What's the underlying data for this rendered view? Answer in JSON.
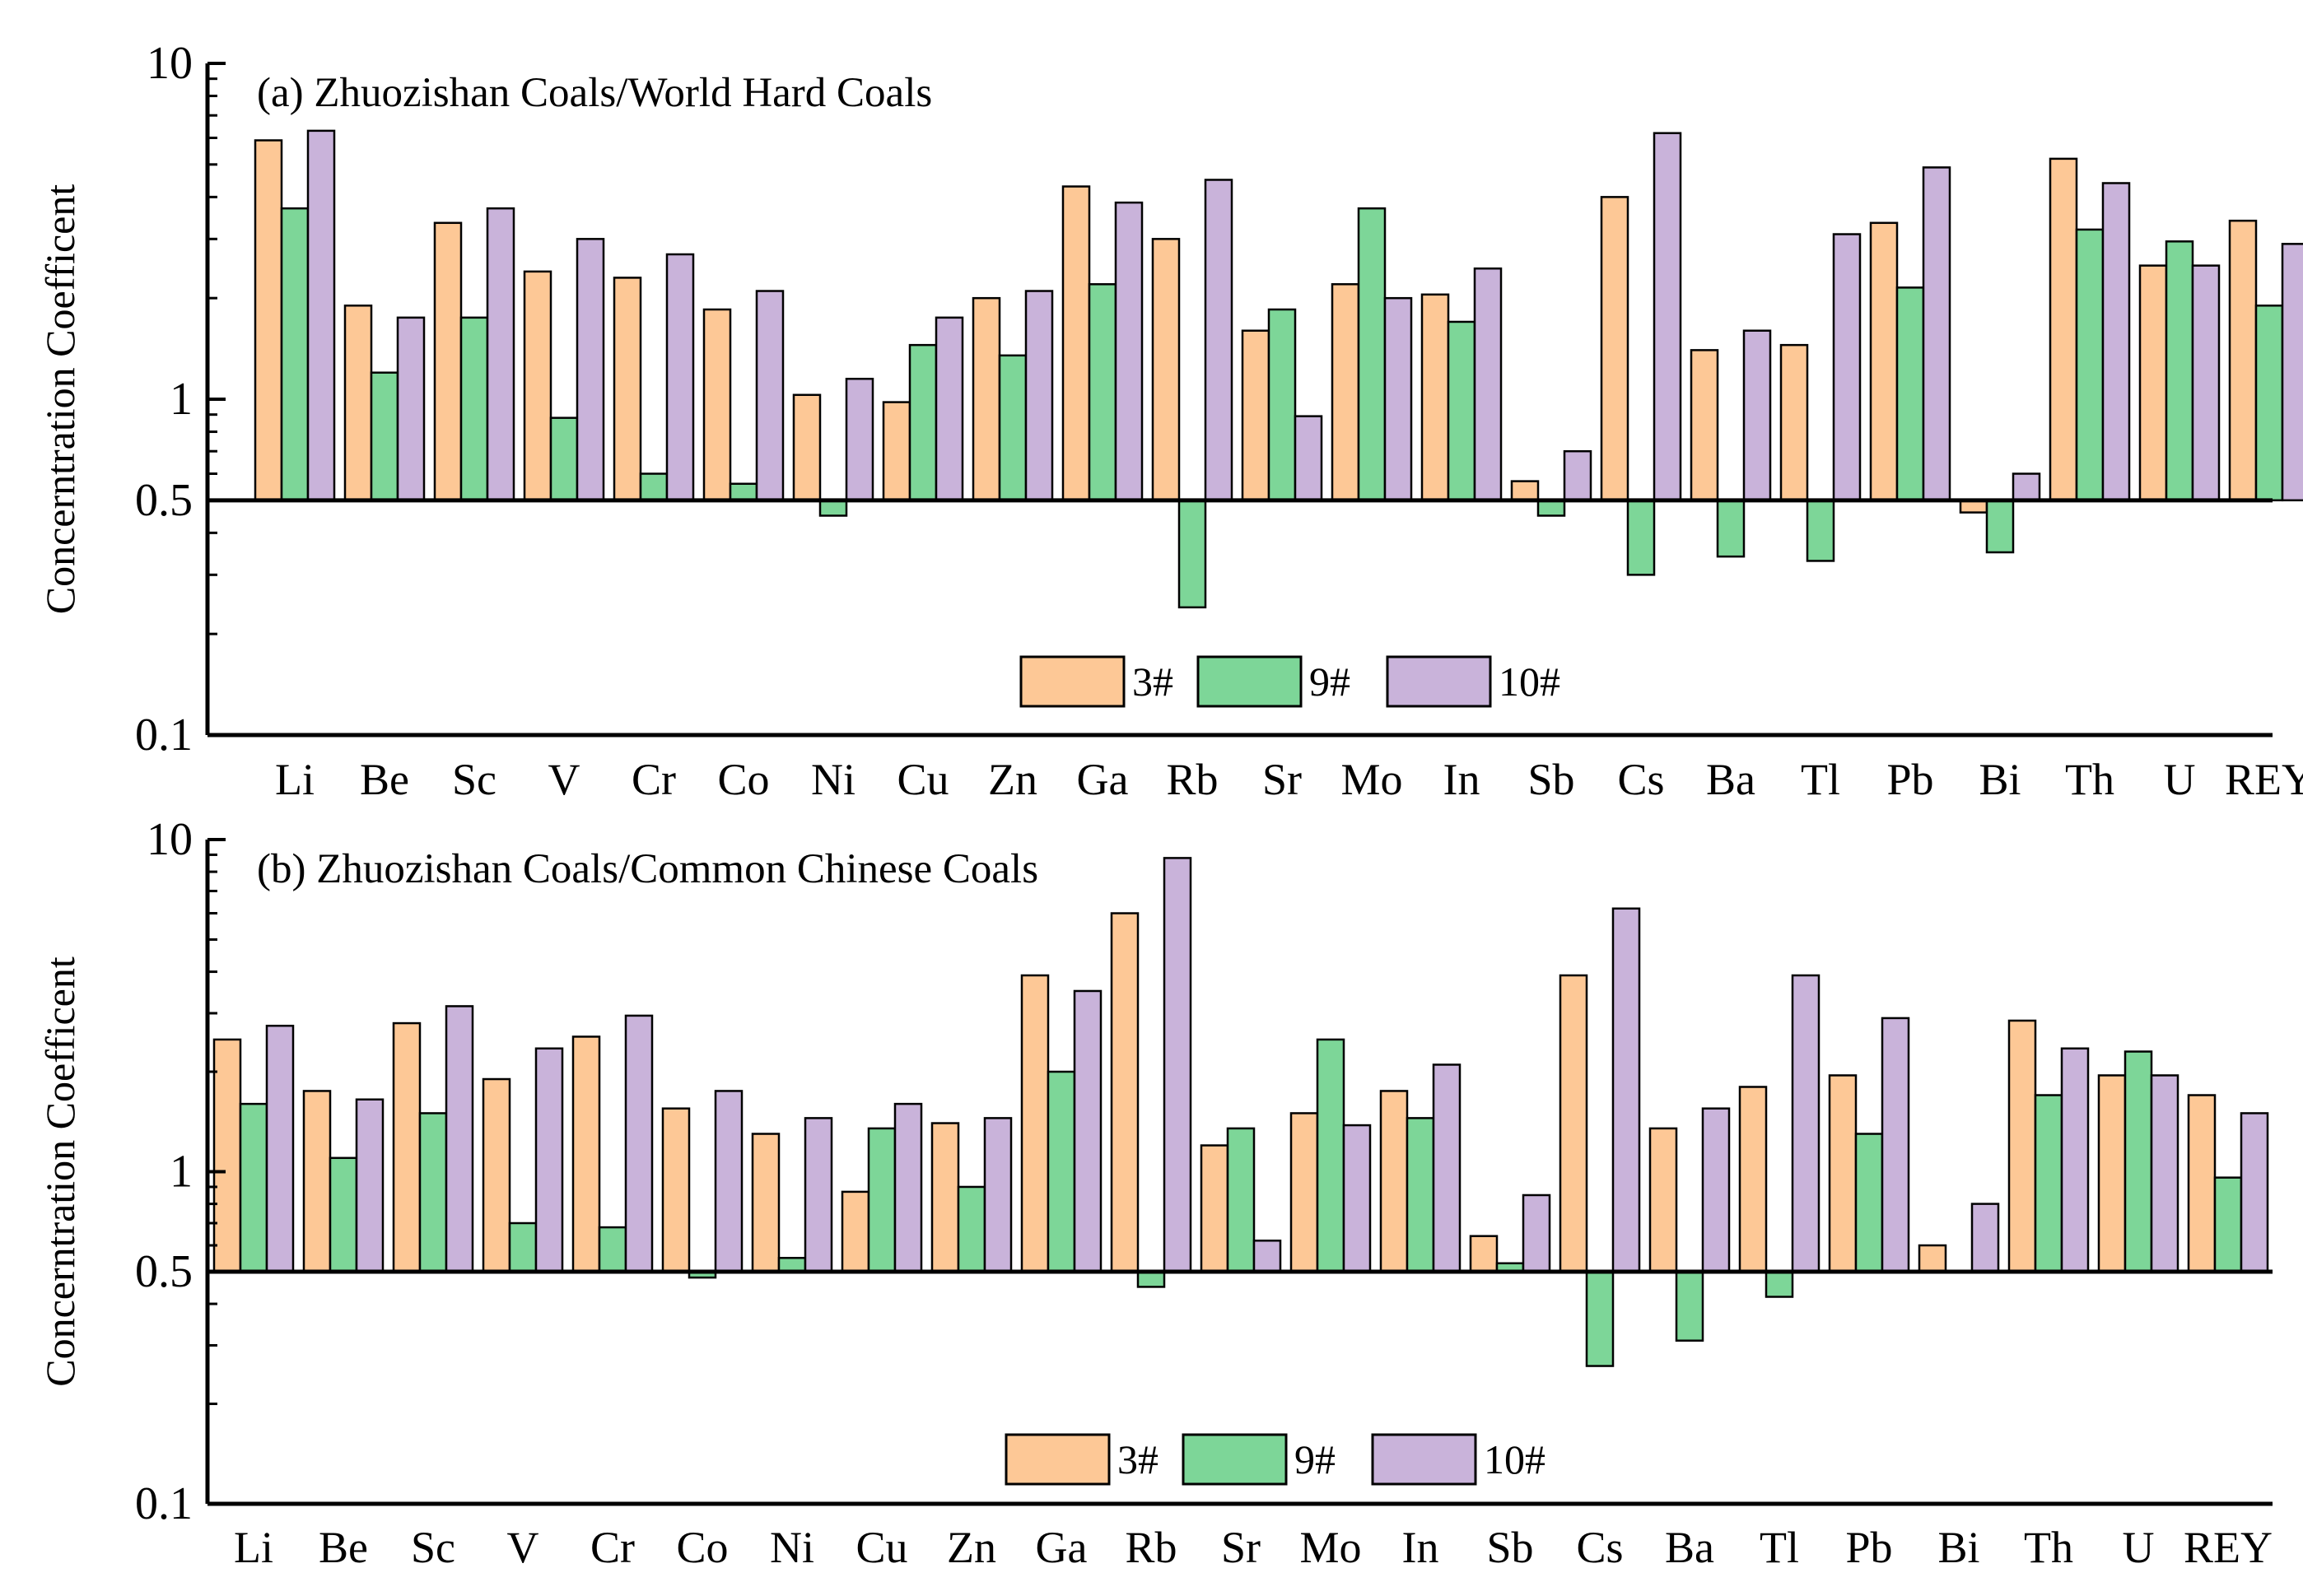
{
  "chart_data": [
    {
      "type": "bar",
      "title": "(a) Zhuozishan Coals/World Hard Coals",
      "ylabel": "Concerntration Coefficent",
      "xlabel": "",
      "yscale": "log",
      "ylim": [
        0.1,
        10
      ],
      "baseline": 0.5,
      "yticks": [
        "0.1",
        "0.5",
        "1",
        "10"
      ],
      "legend_position": "bottom-center",
      "categories": [
        "Li",
        "Be",
        "Sc",
        "V",
        "Cr",
        "Co",
        "Ni",
        "Cu",
        "Zn",
        "Ga",
        "Rb",
        "Sr",
        "Mo",
        "In",
        "Sb",
        "Cs",
        "Ba",
        "Tl",
        "Pb",
        "Bi",
        "Th",
        "U",
        "REY"
      ],
      "series": [
        {
          "name": "3#",
          "color": "#FDC896",
          "values": [
            5.9,
            1.9,
            3.35,
            2.4,
            2.3,
            1.85,
            1.03,
            0.98,
            2.0,
            4.3,
            3.0,
            1.6,
            2.2,
            2.05,
            0.57,
            4.0,
            1.4,
            1.45,
            3.35,
            0.46,
            5.2,
            2.5,
            3.4
          ]
        },
        {
          "name": "9#",
          "color": "#7DD698",
          "values": [
            3.7,
            1.2,
            1.75,
            0.88,
            0.6,
            0.56,
            0.45,
            1.45,
            1.35,
            2.2,
            0.24,
            1.85,
            3.7,
            1.7,
            0.45,
            0.3,
            0.34,
            0.33,
            2.15,
            0.35,
            3.2,
            2.95,
            1.9
          ]
        },
        {
          "name": "10#",
          "color": "#C9B3DA",
          "values": [
            6.3,
            1.75,
            3.7,
            3.0,
            2.7,
            2.1,
            1.15,
            1.75,
            2.1,
            3.85,
            4.5,
            0.89,
            2.0,
            2.45,
            0.7,
            6.2,
            1.6,
            3.1,
            4.9,
            0.6,
            4.4,
            2.5,
            2.9
          ]
        }
      ]
    },
    {
      "type": "bar",
      "title": "(b) Zhuozishan Coals/Common Chinese Coals",
      "ylabel": "Concerntration Coefficent",
      "xlabel": "",
      "yscale": "log",
      "ylim": [
        0.1,
        10
      ],
      "baseline": 0.5,
      "yticks": [
        "0.1",
        "0.5",
        "1",
        "10"
      ],
      "legend_position": "bottom-center",
      "categories": [
        "Li",
        "Be",
        "Sc",
        "V",
        "Cr",
        "Co",
        "Ni",
        "Cu",
        "Zn",
        "Ga",
        "Rb",
        "Sr",
        "Mo",
        "In",
        "Sb",
        "Cs",
        "Ba",
        "Tl",
        "Pb",
        "Bi",
        "Th",
        "U",
        "REY"
      ],
      "series": [
        {
          "name": "3#",
          "color": "#FDC896",
          "values": [
            2.5,
            1.75,
            2.8,
            1.9,
            2.55,
            1.55,
            1.3,
            0.87,
            1.4,
            3.9,
            6.0,
            1.2,
            1.5,
            1.75,
            0.64,
            3.9,
            1.35,
            1.8,
            1.95,
            0.6,
            2.85,
            1.95,
            1.7
          ]
        },
        {
          "name": "9#",
          "color": "#7DD698",
          "values": [
            1.6,
            1.1,
            1.5,
            0.7,
            0.68,
            0.48,
            0.55,
            1.35,
            0.9,
            2.0,
            0.45,
            1.35,
            2.5,
            1.45,
            0.53,
            0.26,
            0.31,
            0.42,
            1.3,
            0.5,
            1.7,
            2.3,
            0.96
          ]
        },
        {
          "name": "10#",
          "color": "#C9B3DA",
          "values": [
            2.75,
            1.65,
            3.15,
            2.35,
            2.95,
            1.75,
            1.45,
            1.6,
            1.45,
            3.5,
            8.8,
            0.62,
            1.38,
            2.1,
            0.85,
            6.2,
            1.55,
            3.9,
            2.9,
            0.8,
            2.35,
            1.95,
            1.5
          ]
        }
      ]
    }
  ]
}
